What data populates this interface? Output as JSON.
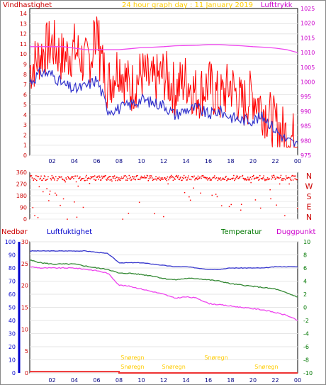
{
  "titles": {
    "top_left": "Vindhastighet",
    "top_center": "24 hour graph day : 11 January 2019",
    "top_right": "Lufttrykk",
    "mid_left": "Nedbør",
    "mid_left2": "Luftfuktighet",
    "mid_right": "Temperatur",
    "mid_right2": "Duggpunkt"
  },
  "colors": {
    "wind": "#ff0000",
    "gust": "#ff4444",
    "avg_wind": "#3333cc",
    "pressure": "#ee44ee",
    "humidity": "#3333cc",
    "temperature": "#338833",
    "dewpoint": "#ee44ee",
    "rain": "#ee3333",
    "annotation": "#ffcc00",
    "frame": "#000000",
    "tick_left_top": "#cc0000",
    "tick_right_top": "#cc00cc",
    "tick_rain": "#0000cc",
    "tick_temp": "#007700"
  },
  "x_ticks": [
    "02",
    "04",
    "06",
    "08",
    "10",
    "12",
    "14",
    "16",
    "18",
    "20",
    "22",
    "00"
  ],
  "dir_labels": [
    "N",
    "W",
    "S",
    "E",
    "N"
  ],
  "annotations": [
    "Snøregn",
    "Snøregn",
    "Snøregn",
    "Snøregn",
    "Snøregn"
  ],
  "chart_data": [
    {
      "type": "line",
      "title": "24 hour graph day : 11 January 2019",
      "xlabel": "",
      "ylabel_left": "Vindhastighet",
      "ylabel_right": "Lufttrykk",
      "y_left_range": [
        0,
        14.5
      ],
      "y_left_ticks": [
        0,
        1,
        2,
        3,
        4,
        5,
        6,
        7,
        8,
        9,
        10,
        11,
        12,
        13,
        14
      ],
      "y_right_range": [
        975,
        1025
      ],
      "y_right_ticks": [
        975,
        980,
        985,
        990,
        995,
        1000,
        1005,
        1010,
        1015,
        1020,
        1025
      ],
      "x_hours": [
        0,
        1,
        2,
        3,
        4,
        5,
        6,
        7,
        8,
        9,
        10,
        11,
        12,
        13,
        14,
        15,
        16,
        17,
        18,
        19,
        20,
        21,
        22,
        23,
        24
      ],
      "series": [
        {
          "name": "Vindhastighet",
          "axis": "left",
          "values": [
            8.5,
            10,
            11,
            9.5,
            10.5,
            9,
            11,
            7,
            9,
            6.5,
            8,
            7,
            8,
            6.5,
            7.5,
            6,
            7,
            5.5,
            7,
            5,
            6,
            4.5,
            3,
            2,
            1.5
          ]
        },
        {
          "name": "",
          "axis": "left",
          "values": [
            7.2,
            8.2,
            8.0,
            7.0,
            6.5,
            6.8,
            7.5,
            4.5,
            4.6,
            5.0,
            5.5,
            5.2,
            5.0,
            4.0,
            4.5,
            4.7,
            4.0,
            4.4,
            3.8,
            3.5,
            3.5,
            3.8,
            2.5,
            1.5,
            1.0
          ]
        },
        {
          "name": "Lufttrykk",
          "axis": "right",
          "values": [
            1012,
            1012,
            1012,
            1012,
            1011.5,
            1011,
            1011,
            1011,
            1011,
            1011.3,
            1011.7,
            1011.8,
            1012,
            1012.3,
            1012.4,
            1012.5,
            1012.7,
            1012.7,
            1012.5,
            1012.3,
            1012,
            1011.8,
            1011.5,
            1011,
            1010
          ]
        }
      ]
    },
    {
      "type": "scatter",
      "title": "",
      "ylabel_left": "",
      "y_left_range": [
        0,
        360
      ],
      "y_left_ticks": [
        0,
        45,
        90,
        135,
        180,
        225,
        270,
        315,
        360
      ],
      "y_left_tick_labels": [
        "0",
        "45",
        "90",
        "135",
        "180",
        "225",
        "270",
        "315",
        "360"
      ],
      "series": [
        {
          "name": "",
          "values_hours": [
            0,
            0.5,
            1,
            1.5,
            2,
            2.5,
            3,
            3.5,
            4,
            4.5,
            5,
            5.5,
            6,
            6.5,
            7,
            7.5,
            8,
            8.5,
            9,
            9.5,
            10,
            10.5,
            11,
            11.5,
            12,
            12.5,
            13,
            13.5,
            14,
            14.5,
            15,
            15.5,
            16,
            16.5,
            17,
            17.5,
            18,
            18.5,
            19,
            19.5,
            20,
            20.5,
            21,
            21.5,
            22,
            22.5,
            23,
            23.5
          ],
          "values": [
            320,
            330,
            300,
            325,
            340,
            310,
            330,
            320,
            335,
            315,
            330,
            300,
            325,
            310,
            330,
            320,
            340,
            325,
            330,
            315,
            320,
            335,
            325,
            310,
            330,
            320,
            335,
            315,
            330,
            325,
            320,
            340,
            330,
            315,
            335,
            320,
            330,
            325,
            310,
            340,
            330,
            320,
            335,
            315,
            325,
            330,
            320,
            335
          ]
        }
      ]
    },
    {
      "type": "line",
      "title": "",
      "ylabel_left": "Nedbør",
      "ylabel_left2": "Luftfuktighet",
      "ylabel_right": "Temperatur",
      "ylabel_right2": "Duggpunkt",
      "y_rain_range": [
        0,
        100
      ],
      "y_rain_ticks": [
        0,
        10,
        20,
        30,
        40,
        50,
        60,
        70,
        80,
        90,
        100
      ],
      "y_hum_range": [
        0,
        30
      ],
      "y_hum_ticks": [
        0,
        5,
        10,
        15,
        20,
        25,
        30
      ],
      "y_temp_range": [
        -10,
        10
      ],
      "y_temp_ticks": [
        -10,
        -8,
        -6,
        -4,
        -2,
        0,
        2,
        4,
        6,
        8,
        10
      ],
      "x_hours": [
        0,
        1,
        2,
        3,
        4,
        5,
        6,
        7,
        8,
        9,
        10,
        11,
        12,
        13,
        14,
        15,
        16,
        17,
        18,
        19,
        20,
        21,
        22,
        23,
        24
      ],
      "series": [
        {
          "name": "Luftfuktighet",
          "axis": "rain",
          "values": [
            93,
            93,
            93,
            93,
            93,
            93,
            92,
            91,
            84,
            84,
            84,
            83,
            82,
            81,
            81,
            80,
            79,
            79,
            80,
            80,
            80,
            80,
            81,
            81,
            81
          ]
        },
        {
          "name": "Temperatur",
          "axis": "temp",
          "values": [
            7.2,
            6.8,
            6.6,
            6.6,
            6.6,
            6.3,
            6.0,
            5.8,
            5.2,
            5.2,
            5.0,
            4.8,
            4.4,
            4.2,
            4.4,
            4.4,
            4.2,
            4.0,
            3.6,
            3.4,
            3.2,
            3.0,
            2.8,
            2.2,
            1.6
          ]
        },
        {
          "name": "Duggpunkt",
          "axis": "temp",
          "values": [
            6.2,
            6.0,
            6.0,
            6.0,
            6.0,
            5.8,
            5.6,
            5.2,
            3.4,
            3.2,
            2.8,
            2.4,
            2.0,
            1.4,
            1.6,
            1.4,
            0.6,
            0.4,
            0.2,
            0.0,
            -0.2,
            -0.4,
            -0.8,
            -1.2,
            -2.0
          ]
        },
        {
          "name": "Nedbør",
          "axis": "rain",
          "values": [
            1,
            1,
            1,
            1,
            1,
            1,
            1,
            1,
            0,
            0,
            0,
            0,
            0,
            0,
            0,
            0,
            0,
            0,
            0,
            0,
            0,
            0,
            0,
            0,
            0
          ]
        }
      ]
    }
  ]
}
